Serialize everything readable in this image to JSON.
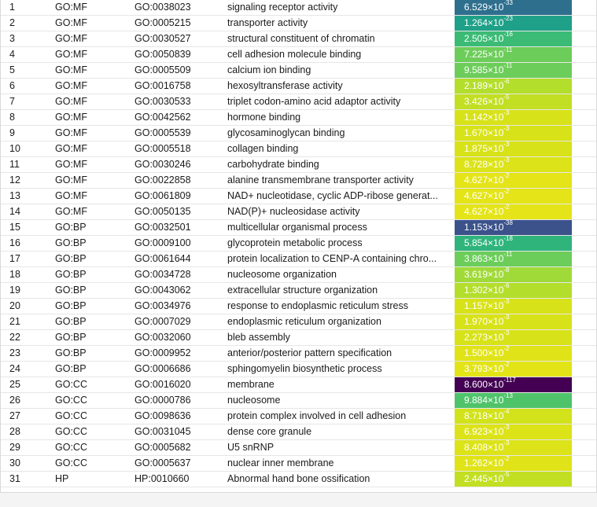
{
  "colors": {
    "row_border": "#e6e6e6",
    "dark_text_on": "#ffffff"
  },
  "rows": [
    {
      "idx": "1",
      "source": "GO:MF",
      "term": "GO:0038023",
      "name": "signaling receptor activity",
      "mant": "6.529",
      "exp": "-33",
      "bg": "#2e6f8e",
      "fg": "#ffffff"
    },
    {
      "idx": "2",
      "source": "GO:MF",
      "term": "GO:0005215",
      "name": "transporter activity",
      "mant": "1.264",
      "exp": "-23",
      "bg": "#1fa088",
      "fg": "#ffffff"
    },
    {
      "idx": "3",
      "source": "GO:MF",
      "term": "GO:0030527",
      "name": "structural constituent of chromatin",
      "mant": "2.505",
      "exp": "-16",
      "bg": "#3bbb75",
      "fg": "#ffffff"
    },
    {
      "idx": "4",
      "source": "GO:MF",
      "term": "GO:0050839",
      "name": "cell adhesion molecule binding",
      "mant": "7.225",
      "exp": "-11",
      "bg": "#6ccd5a",
      "fg": "#ffffff"
    },
    {
      "idx": "5",
      "source": "GO:MF",
      "term": "GO:0005509",
      "name": "calcium ion binding",
      "mant": "9.585",
      "exp": "-11",
      "bg": "#6ccd5a",
      "fg": "#ffffff"
    },
    {
      "idx": "6",
      "source": "GO:MF",
      "term": "GO:0016758",
      "name": "hexosyltransferase activity",
      "mant": "2.189",
      "exp": "-6",
      "bg": "#b4de2c",
      "fg": "#ffffff"
    },
    {
      "idx": "7",
      "source": "GO:MF",
      "term": "GO:0030533",
      "name": "triplet codon-amino acid adaptor activity",
      "mant": "3.426",
      "exp": "-5",
      "bg": "#c2df23",
      "fg": "#ffffff"
    },
    {
      "idx": "8",
      "source": "GO:MF",
      "term": "GO:0042562",
      "name": "hormone binding",
      "mant": "1.142",
      "exp": "-3",
      "bg": "#d8e219",
      "fg": "#ffffff"
    },
    {
      "idx": "9",
      "source": "GO:MF",
      "term": "GO:0005539",
      "name": "glycosaminoglycan binding",
      "mant": "1.670",
      "exp": "-3",
      "bg": "#d8e219",
      "fg": "#ffffff"
    },
    {
      "idx": "10",
      "source": "GO:MF",
      "term": "GO:0005518",
      "name": "collagen binding",
      "mant": "1.875",
      "exp": "-3",
      "bg": "#d8e219",
      "fg": "#ffffff"
    },
    {
      "idx": "11",
      "source": "GO:MF",
      "term": "GO:0030246",
      "name": "carbohydrate binding",
      "mant": "8.728",
      "exp": "-3",
      "bg": "#dce319",
      "fg": "#ffffff"
    },
    {
      "idx": "12",
      "source": "GO:MF",
      "term": "GO:0022858",
      "name": "alanine transmembrane transporter activity",
      "mant": "4.627",
      "exp": "-2",
      "bg": "#e4e419",
      "fg": "#ffffff"
    },
    {
      "idx": "13",
      "source": "GO:MF",
      "term": "GO:0061809",
      "name": "NAD+ nucleotidase, cyclic ADP-ribose generat...",
      "mant": "4.627",
      "exp": "-2",
      "bg": "#e4e419",
      "fg": "#ffffff"
    },
    {
      "idx": "14",
      "source": "GO:MF",
      "term": "GO:0050135",
      "name": "NAD(P)+ nucleosidase activity",
      "mant": "4.627",
      "exp": "-2",
      "bg": "#e4e419",
      "fg": "#ffffff"
    },
    {
      "idx": "15",
      "source": "GO:BP",
      "term": "GO:0032501",
      "name": "multicellular organismal process",
      "mant": "1.153",
      "exp": "-38",
      "bg": "#3b528b",
      "fg": "#ffffff"
    },
    {
      "idx": "16",
      "source": "GO:BP",
      "term": "GO:0009100",
      "name": "glycoprotein metabolic process",
      "mant": "5.854",
      "exp": "-18",
      "bg": "#2fb47c",
      "fg": "#ffffff"
    },
    {
      "idx": "17",
      "source": "GO:BP",
      "term": "GO:0061644",
      "name": "protein localization to CENP-A containing chro...",
      "mant": "3.863",
      "exp": "-11",
      "bg": "#6ccd5a",
      "fg": "#ffffff"
    },
    {
      "idx": "18",
      "source": "GO:BP",
      "term": "GO:0034728",
      "name": "nucleosome organization",
      "mant": "3.619",
      "exp": "-8",
      "bg": "#a0da39",
      "fg": "#ffffff"
    },
    {
      "idx": "19",
      "source": "GO:BP",
      "term": "GO:0043062",
      "name": "extracellular structure organization",
      "mant": "1.302",
      "exp": "-6",
      "bg": "#b4de2c",
      "fg": "#ffffff"
    },
    {
      "idx": "20",
      "source": "GO:BP",
      "term": "GO:0034976",
      "name": "response to endoplasmic reticulum stress",
      "mant": "1.157",
      "exp": "-3",
      "bg": "#d8e219",
      "fg": "#ffffff"
    },
    {
      "idx": "21",
      "source": "GO:BP",
      "term": "GO:0007029",
      "name": "endoplasmic reticulum organization",
      "mant": "1.970",
      "exp": "-3",
      "bg": "#d8e219",
      "fg": "#ffffff"
    },
    {
      "idx": "22",
      "source": "GO:BP",
      "term": "GO:0032060",
      "name": "bleb assembly",
      "mant": "2.273",
      "exp": "-3",
      "bg": "#d8e219",
      "fg": "#ffffff"
    },
    {
      "idx": "23",
      "source": "GO:BP",
      "term": "GO:0009952",
      "name": "anterior/posterior pattern specification",
      "mant": "1.500",
      "exp": "-2",
      "bg": "#e0e318",
      "fg": "#ffffff"
    },
    {
      "idx": "24",
      "source": "GO:BP",
      "term": "GO:0006686",
      "name": "sphingomyelin biosynthetic process",
      "mant": "3.793",
      "exp": "-2",
      "bg": "#e2e418",
      "fg": "#ffffff"
    },
    {
      "idx": "25",
      "source": "GO:CC",
      "term": "GO:0016020",
      "name": "membrane",
      "mant": "8.600",
      "exp": "-117",
      "bg": "#440154",
      "fg": "#ffffff"
    },
    {
      "idx": "26",
      "source": "GO:CC",
      "term": "GO:0000786",
      "name": "nucleosome",
      "mant": "9.884",
      "exp": "-13",
      "bg": "#4fc36a",
      "fg": "#ffffff"
    },
    {
      "idx": "27",
      "source": "GO:CC",
      "term": "GO:0098636",
      "name": "protein complex involved in cell adhesion",
      "mant": "8.718",
      "exp": "-4",
      "bg": "#d2e21b",
      "fg": "#ffffff"
    },
    {
      "idx": "28",
      "source": "GO:CC",
      "term": "GO:0031045",
      "name": "dense core granule",
      "mant": "6.923",
      "exp": "-3",
      "bg": "#dce319",
      "fg": "#ffffff"
    },
    {
      "idx": "29",
      "source": "GO:CC",
      "term": "GO:0005682",
      "name": "U5 snRNP",
      "mant": "8.408",
      "exp": "-3",
      "bg": "#dce319",
      "fg": "#ffffff"
    },
    {
      "idx": "30",
      "source": "GO:CC",
      "term": "GO:0005637",
      "name": "nuclear inner membrane",
      "mant": "1.262",
      "exp": "-2",
      "bg": "#e0e318",
      "fg": "#ffffff"
    },
    {
      "idx": "31",
      "source": "HP",
      "term": "HP:0010660",
      "name": "Abnormal hand bone ossification",
      "mant": "2.445",
      "exp": "-5",
      "bg": "#c2df23",
      "fg": "#ffffff"
    }
  ]
}
